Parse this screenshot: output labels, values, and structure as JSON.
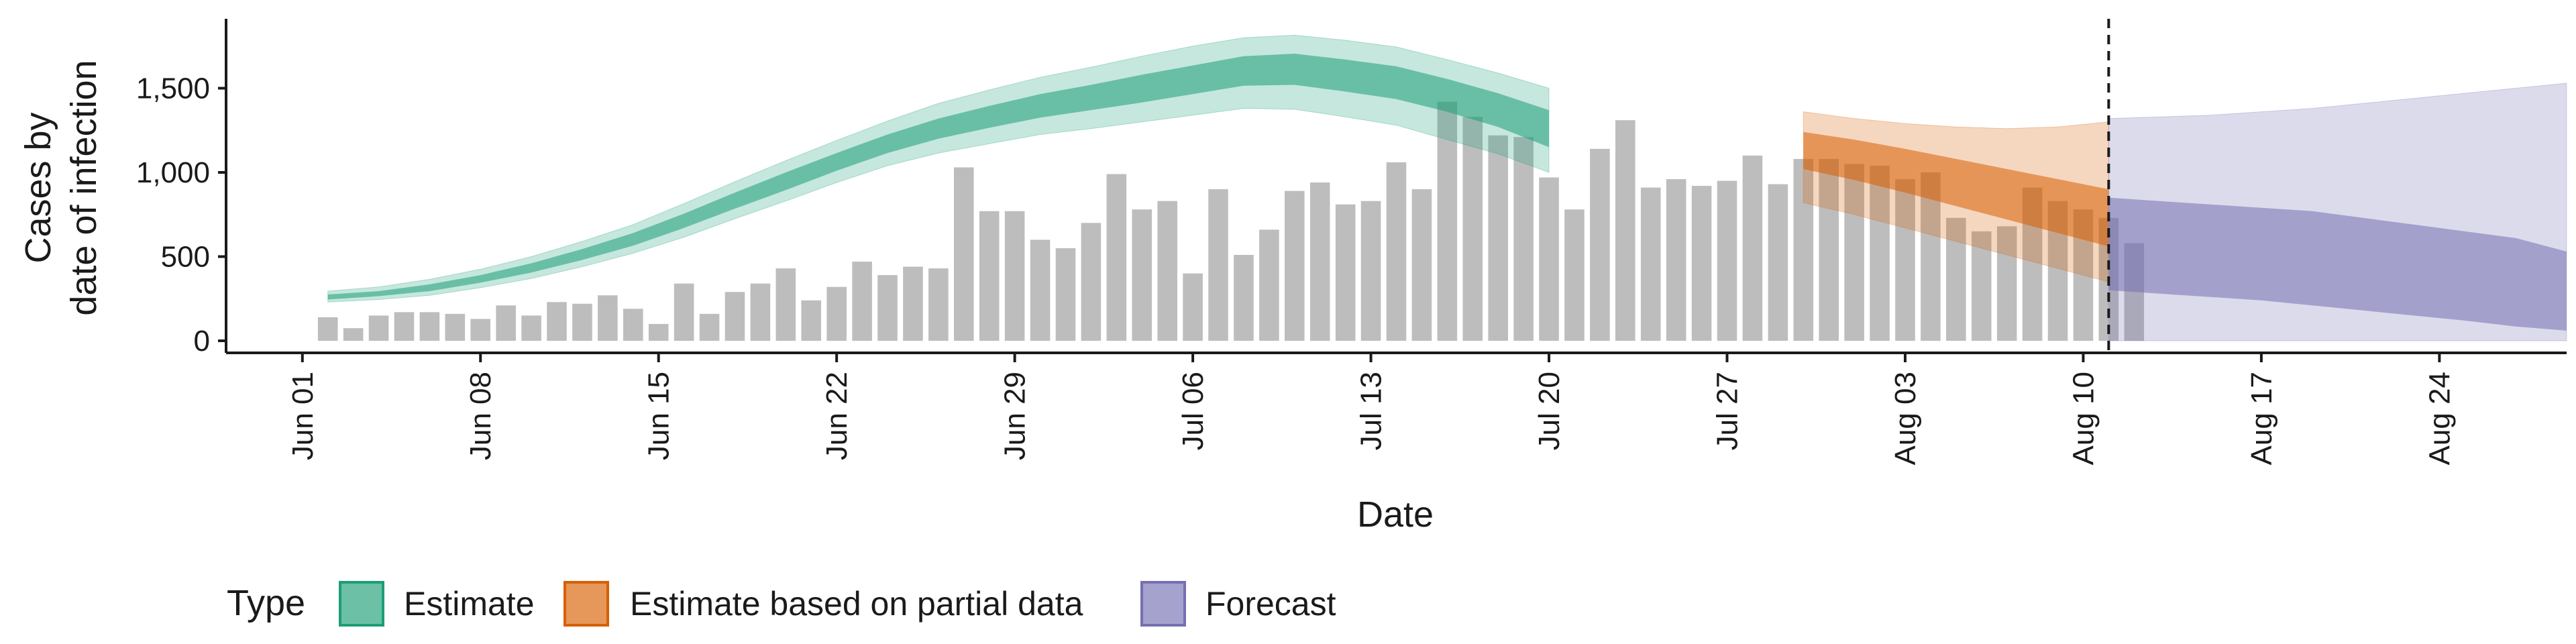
{
  "chart_data": {
    "type": "bar",
    "xlabel": "Date",
    "ylabel_lines": [
      "Cases by",
      "date of infection"
    ],
    "ylim": [
      0,
      1900
    ],
    "y_ticks": [
      0,
      500,
      1000,
      1500
    ],
    "y_tick_labels": [
      "0",
      "500",
      "1,000",
      "1,500"
    ],
    "x_range": [
      "2020-05-29",
      "2020-08-29"
    ],
    "x_ticks": [
      "2020-06-01",
      "2020-06-08",
      "2020-06-15",
      "2020-06-22",
      "2020-06-29",
      "2020-07-06",
      "2020-07-13",
      "2020-07-20",
      "2020-07-27",
      "2020-08-03",
      "2020-08-10",
      "2020-08-17",
      "2020-08-24"
    ],
    "x_tick_labels": [
      "Jun 01",
      "Jun 08",
      "Jun 15",
      "Jun 22",
      "Jun 29",
      "Jul 06",
      "Jul 13",
      "Jul 20",
      "Jul 27",
      "Aug 03",
      "Aug 10",
      "Aug 17",
      "Aug 24"
    ],
    "forecast_cutoff": "2020-08-11",
    "grid": false,
    "bars": {
      "start": "2020-06-02",
      "end": "2020-08-11",
      "values": [
        140,
        75,
        150,
        170,
        170,
        160,
        130,
        210,
        150,
        230,
        220,
        270,
        190,
        100,
        340,
        160,
        290,
        340,
        430,
        240,
        320,
        470,
        390,
        440,
        430,
        1030,
        770,
        770,
        600,
        550,
        700,
        990,
        780,
        830,
        400,
        900,
        510,
        660,
        890,
        940,
        810,
        830,
        1060,
        900,
        1420,
        1330,
        1220,
        1210,
        970,
        780,
        1140,
        1310,
        910,
        960,
        920,
        950,
        1100,
        930,
        1080,
        1080,
        1050,
        1040,
        960,
        1000,
        730,
        650,
        680,
        910,
        830,
        780,
        730,
        580
      ]
    },
    "legend": {
      "title": "Type",
      "position": "bottom",
      "entries": [
        {
          "label": "Estimate",
          "color": "#1b9e77"
        },
        {
          "label": "Estimate based on partial data",
          "color": "#d95f02"
        },
        {
          "label": "Forecast",
          "color": "#7570b3"
        }
      ]
    },
    "series": [
      {
        "name": "Estimate",
        "color": "#1b9e77",
        "start": "2020-06-02",
        "x_step_days": 2,
        "median": [
          260,
          280,
          315,
          365,
          430,
          510,
          600,
          710,
          830,
          945,
          1060,
          1170,
          1260,
          1330,
          1395,
          1445,
          1495,
          1550,
          1605,
          1615,
          1580,
          1540,
          1465,
          1380,
          1260
        ],
        "inner": [
          [
            245,
            275
          ],
          [
            265,
            295
          ],
          [
            295,
            335
          ],
          [
            345,
            390
          ],
          [
            405,
            460
          ],
          [
            480,
            545
          ],
          [
            565,
            640
          ],
          [
            670,
            755
          ],
          [
            785,
            880
          ],
          [
            895,
            1000
          ],
          [
            1010,
            1115
          ],
          [
            1115,
            1225
          ],
          [
            1200,
            1320
          ],
          [
            1265,
            1395
          ],
          [
            1325,
            1465
          ],
          [
            1370,
            1520
          ],
          [
            1415,
            1580
          ],
          [
            1465,
            1635
          ],
          [
            1515,
            1690
          ],
          [
            1520,
            1705
          ],
          [
            1480,
            1670
          ],
          [
            1435,
            1630
          ],
          [
            1360,
            1555
          ],
          [
            1270,
            1470
          ],
          [
            1150,
            1370
          ]
        ],
        "outer": [
          [
            230,
            295
          ],
          [
            245,
            320
          ],
          [
            270,
            365
          ],
          [
            315,
            425
          ],
          [
            370,
            500
          ],
          [
            440,
            590
          ],
          [
            520,
            690
          ],
          [
            615,
            815
          ],
          [
            725,
            945
          ],
          [
            830,
            1070
          ],
          [
            940,
            1190
          ],
          [
            1040,
            1305
          ],
          [
            1115,
            1410
          ],
          [
            1170,
            1490
          ],
          [
            1225,
            1565
          ],
          [
            1260,
            1625
          ],
          [
            1300,
            1690
          ],
          [
            1340,
            1750
          ],
          [
            1380,
            1800
          ],
          [
            1375,
            1815
          ],
          [
            1330,
            1785
          ],
          [
            1280,
            1745
          ],
          [
            1195,
            1670
          ],
          [
            1110,
            1590
          ],
          [
            1000,
            1500
          ]
        ]
      },
      {
        "name": "Estimate based on partial data",
        "color": "#d95f02",
        "start": "2020-07-30",
        "x_step_days": 2,
        "median": [
          1130,
          1075,
          1010,
          940,
          870,
          800,
          730
        ],
        "inner": [
          [
            1020,
            1240
          ],
          [
            955,
            1195
          ],
          [
            880,
            1140
          ],
          [
            800,
            1080
          ],
          [
            720,
            1020
          ],
          [
            640,
            960
          ],
          [
            560,
            900
          ]
        ],
        "outer": [
          [
            820,
            1360
          ],
          [
            750,
            1320
          ],
          [
            670,
            1290
          ],
          [
            590,
            1270
          ],
          [
            510,
            1260
          ],
          [
            430,
            1270
          ],
          [
            350,
            1300
          ]
        ]
      },
      {
        "name": "Forecast",
        "color": "#7570b3",
        "start": "2020-08-11",
        "x_step_days": 2,
        "median": [
          570,
          540,
          510,
          490,
          470,
          440,
          410,
          370,
          340,
          300
        ],
        "inner": [
          [
            300,
            850
          ],
          [
            280,
            830
          ],
          [
            260,
            810
          ],
          [
            240,
            790
          ],
          [
            210,
            770
          ],
          [
            180,
            730
          ],
          [
            150,
            690
          ],
          [
            120,
            650
          ],
          [
            85,
            610
          ],
          [
            60,
            530
          ]
        ],
        "outer": [
          [
            0,
            1320
          ],
          [
            0,
            1330
          ],
          [
            0,
            1340
          ],
          [
            0,
            1360
          ],
          [
            0,
            1380
          ],
          [
            0,
            1410
          ],
          [
            0,
            1440
          ],
          [
            0,
            1470
          ],
          [
            0,
            1500
          ],
          [
            0,
            1530
          ]
        ]
      }
    ]
  }
}
